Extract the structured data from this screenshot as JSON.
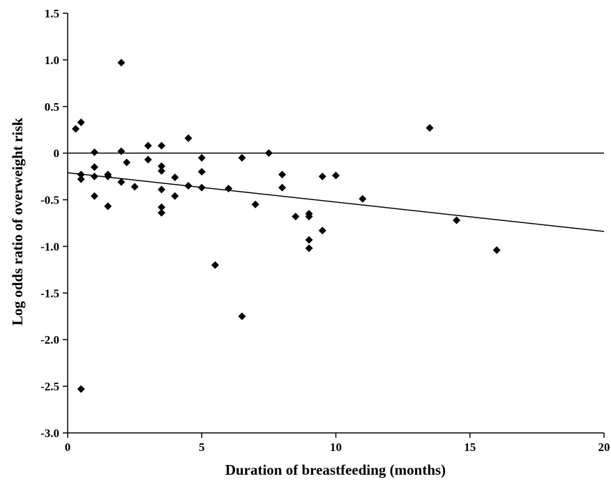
{
  "chart_data": {
    "type": "scatter",
    "title": "",
    "xlabel": "Duration of breastfeeding (months)",
    "ylabel": "Log odds ratio of overweight risk",
    "xlim": [
      0,
      20
    ],
    "ylim": [
      -3.0,
      1.5
    ],
    "x_ticks": [
      0,
      5,
      10,
      15,
      20
    ],
    "y_ticks": [
      1.5,
      1.0,
      0.5,
      0,
      -0.5,
      -1.0,
      -1.5,
      -2.0,
      -2.5,
      -3.0
    ],
    "x_tick_labels": [
      "0",
      "5",
      "10",
      "15",
      "20"
    ],
    "y_tick_labels": [
      "1.5",
      "1.0",
      "0.5",
      "0",
      "-0.5",
      "-1.0",
      "-1.5",
      "-2.0",
      "-2.5",
      "-3.0"
    ],
    "grid": false,
    "marker": "diamond",
    "marker_color": "#000000",
    "reference_line": {
      "y": 0
    },
    "regression_line": {
      "x": [
        0,
        20
      ],
      "y": [
        -0.21,
        -0.84
      ]
    },
    "points": [
      {
        "x": 0.3,
        "y": 0.26
      },
      {
        "x": 0.5,
        "y": 0.33
      },
      {
        "x": 0.5,
        "y": -0.23
      },
      {
        "x": 0.5,
        "y": -0.28
      },
      {
        "x": 0.5,
        "y": -2.53
      },
      {
        "x": 1.0,
        "y": 0.01
      },
      {
        "x": 1.0,
        "y": -0.15
      },
      {
        "x": 1.0,
        "y": -0.25
      },
      {
        "x": 1.0,
        "y": -0.46
      },
      {
        "x": 1.5,
        "y": -0.23
      },
      {
        "x": 1.5,
        "y": -0.25
      },
      {
        "x": 1.5,
        "y": -0.57
      },
      {
        "x": 2.0,
        "y": 0.97
      },
      {
        "x": 2.0,
        "y": 0.02
      },
      {
        "x": 2.0,
        "y": -0.31
      },
      {
        "x": 2.2,
        "y": -0.1
      },
      {
        "x": 2.5,
        "y": -0.36
      },
      {
        "x": 3.0,
        "y": 0.08
      },
      {
        "x": 3.0,
        "y": -0.07
      },
      {
        "x": 3.5,
        "y": 0.08
      },
      {
        "x": 3.5,
        "y": -0.14
      },
      {
        "x": 3.5,
        "y": -0.19
      },
      {
        "x": 3.5,
        "y": -0.39
      },
      {
        "x": 3.5,
        "y": -0.58
      },
      {
        "x": 3.5,
        "y": -0.64
      },
      {
        "x": 4.0,
        "y": -0.26
      },
      {
        "x": 4.0,
        "y": -0.46
      },
      {
        "x": 4.5,
        "y": 0.16
      },
      {
        "x": 4.5,
        "y": -0.35
      },
      {
        "x": 5.0,
        "y": -0.05
      },
      {
        "x": 5.0,
        "y": -0.2
      },
      {
        "x": 5.0,
        "y": -0.37
      },
      {
        "x": 5.5,
        "y": -1.2
      },
      {
        "x": 6.0,
        "y": -0.38
      },
      {
        "x": 6.5,
        "y": -0.05
      },
      {
        "x": 6.5,
        "y": -1.75
      },
      {
        "x": 7.0,
        "y": -0.55
      },
      {
        "x": 7.5,
        "y": 0.0
      },
      {
        "x": 8.0,
        "y": -0.23
      },
      {
        "x": 8.0,
        "y": -0.37
      },
      {
        "x": 8.5,
        "y": -0.68
      },
      {
        "x": 9.0,
        "y": -0.65
      },
      {
        "x": 9.0,
        "y": -0.68
      },
      {
        "x": 9.0,
        "y": -0.93
      },
      {
        "x": 9.0,
        "y": -1.02
      },
      {
        "x": 9.5,
        "y": -0.25
      },
      {
        "x": 9.5,
        "y": -0.83
      },
      {
        "x": 10.0,
        "y": -0.24
      },
      {
        "x": 11.0,
        "y": -0.49
      },
      {
        "x": 13.5,
        "y": 0.27
      },
      {
        "x": 14.5,
        "y": -0.72
      },
      {
        "x": 16.0,
        "y": -1.04
      }
    ]
  }
}
